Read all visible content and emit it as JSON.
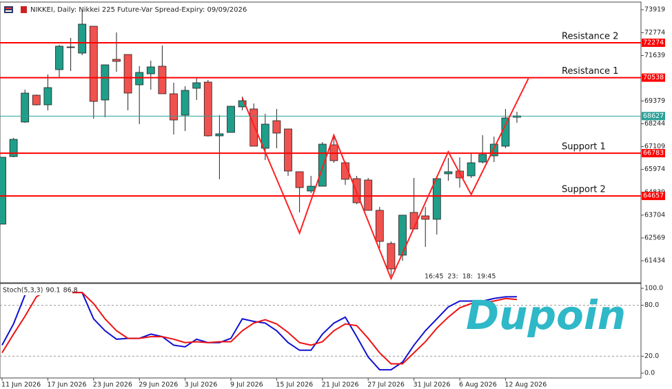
{
  "chart_data": [
    {
      "type": "candlestick",
      "title": "NIKKEI, Daily: Nikkei 225 Future-Var Spread-Expiry: 09/09/2026",
      "categories": [
        "11 Jun 2026",
        null,
        null,
        null,
        "17 Jun 2026",
        null,
        null,
        null,
        "23 Jun 2026",
        null,
        null,
        null,
        "29 Jun 2026",
        null,
        null,
        null,
        "3 Jul 2026",
        null,
        null,
        null,
        "9 Jul 2026",
        null,
        null,
        null,
        "15 Jul 2026",
        null,
        null,
        null,
        "21 Jul 2026",
        null,
        null,
        null,
        "27 Jul 2026",
        null,
        null,
        null,
        "31 Jul 2026",
        null,
        null,
        null,
        "6 Aug 2026",
        null,
        null,
        null,
        "12 Aug 2026",
        null
      ],
      "open": [
        63255,
        66615,
        68330,
        69667,
        69187,
        70936,
        72033,
        71759,
        73096,
        69427,
        71450,
        71690,
        70181,
        70730,
        71107,
        69736,
        68673,
        70010,
        70318,
        67644,
        67815,
        69084,
        68981,
        67027,
        68398,
        67987,
        65861,
        64901,
        65141,
        67198,
        66307,
        65518,
        65449,
        63941,
        62295,
        61712,
        63838,
        63666,
        63495,
        65758,
        65895,
        65655,
        66341,
        66649,
        67130,
        68570
      ],
      "high": [
        66581,
        67541,
        69941,
        69701,
        70696,
        72170,
        72513,
        73885,
        73096,
        71176,
        72787,
        71690,
        71107,
        71381,
        72136,
        70284,
        70113,
        70559,
        70421,
        68673,
        69118,
        69598,
        69255,
        68741,
        68981,
        67987,
        65861,
        65655,
        67335,
        67712,
        66375,
        65655,
        65552,
        64112,
        62397,
        63701,
        65552,
        64112,
        65621,
        66547,
        66581,
        66787,
        67678,
        67610,
        68981,
        68844
      ],
      "low": [
        63255,
        66581,
        68295,
        69153,
        68913,
        70559,
        70867,
        71656,
        68501,
        68570,
        70833,
        68913,
        68227,
        69941,
        69736,
        67712,
        67884,
        69427,
        67610,
        65484,
        67815,
        68913,
        67130,
        66444,
        67027,
        65655,
        63838,
        64798,
        65141,
        66307,
        65209,
        64249,
        63941,
        62055,
        60683,
        61437,
        63015,
        62123,
        62740,
        65415,
        65072,
        65552,
        66272,
        66341,
        67027,
        68295
      ],
      "close": [
        66581,
        67472,
        69770,
        69187,
        70044,
        72102,
        72067,
        73199,
        69358,
        71176,
        71347,
        69770,
        70799,
        71073,
        69736,
        68433,
        69907,
        70284,
        67644,
        67747,
        69118,
        69393,
        67130,
        68227,
        67781,
        65895,
        65072,
        65141,
        67232,
        66409,
        65484,
        64318,
        63941,
        62397,
        61026,
        63701,
        63015,
        63495,
        65518,
        65861,
        65552,
        66307,
        66718,
        67232,
        68536,
        68638
      ],
      "up_color": "#1f9e89",
      "down_color": "#f0524f",
      "ylim": [
        60339,
        74399
      ],
      "yticks": [
        73919,
        72774,
        71639,
        69379,
        68244,
        67109,
        65974,
        64839,
        63704,
        62569,
        61434
      ],
      "hlines": [
        {
          "value": 72274,
          "color": "#ff0000",
          "name": "Resistance 2"
        },
        {
          "value": 70538,
          "color": "#ff0000",
          "name": "Resistance 1"
        },
        {
          "value": 68627,
          "color": "#2aa198"
        },
        {
          "value": 66783,
          "color": "#ff0000",
          "name": "Support 1"
        },
        {
          "value": 64657,
          "color": "#ff0000",
          "name": "Support 2"
        }
      ],
      "zigzag": {
        "x": [
          21,
          26,
          29,
          34,
          39,
          41,
          46
        ],
        "values": [
          69530,
          62809,
          67678,
          60546,
          66855,
          64729,
          70490
        ],
        "color": "#ff2020"
      },
      "timer_labels": [
        "16:45",
        "23:",
        "18:",
        "19:45"
      ]
    },
    {
      "type": "line",
      "title": "Stoch(5,3,3)",
      "ylim": [
        -5.7,
        104.9
      ],
      "yticks": [
        {
          "value": 100,
          "label": "100.0"
        },
        {
          "value": 80,
          "label": "80.0"
        },
        {
          "value": 20,
          "label": "20.0"
        },
        {
          "value": 0,
          "label": "0.0"
        }
      ],
      "levels": [
        80,
        20
      ],
      "series": [
        {
          "color": "#1010d0",
          "values": [
            33,
            58,
            92,
            100,
            100,
            100,
            95,
            95,
            64,
            50,
            40,
            41,
            41,
            46,
            43,
            33,
            31,
            40,
            36,
            36,
            41,
            64,
            61,
            59,
            50,
            36,
            27,
            27,
            46,
            59,
            66,
            43,
            19,
            4,
            4,
            13,
            33,
            50,
            64,
            78,
            85,
            85,
            85,
            88,
            90,
            90.1
          ]
        },
        {
          "color": "#ee1111",
          "values": [
            24,
            46,
            67,
            90,
            98,
            100,
            95,
            95,
            82,
            64,
            50,
            41,
            41,
            43,
            43,
            40,
            36,
            37,
            36,
            37,
            37,
            50,
            59,
            63,
            58,
            48,
            36,
            33,
            37,
            50,
            58,
            56,
            41,
            24,
            11,
            11,
            24,
            37,
            53,
            66,
            77,
            82,
            84,
            85,
            88,
            86.8
          ]
        }
      ]
    }
  ],
  "watermark": "Dupoin"
}
